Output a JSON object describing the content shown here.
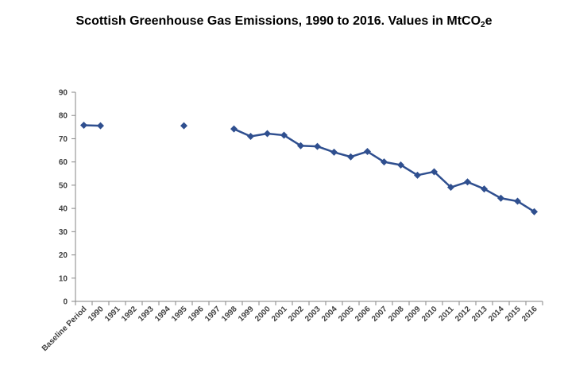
{
  "chart_data": {
    "type": "line",
    "title": {
      "main": "Scottish Greenhouse Gas Emissions, 1990 to 2016.  Values in MtCO",
      "subscript": "2",
      "suffix": "e"
    },
    "xlabel": "",
    "ylabel": "",
    "ylim": [
      0,
      90
    ],
    "yticks": [
      0,
      10,
      20,
      30,
      40,
      50,
      60,
      70,
      80,
      90
    ],
    "grid": false,
    "legend": "none",
    "categories": [
      "Baseline Period",
      "1990",
      "1991",
      "1992",
      "1993",
      "1994",
      "1995",
      "1996",
      "1997",
      "1998",
      "1999",
      "2000",
      "2001",
      "2002",
      "2003",
      "2004",
      "2005",
      "2006",
      "2007",
      "2008",
      "2009",
      "2010",
      "2011",
      "2012",
      "2013",
      "2014",
      "2015",
      "2016"
    ],
    "series": [
      {
        "color": "#2F4F8F",
        "marker": "diamond",
        "values": [
          75.8,
          75.6,
          null,
          null,
          null,
          null,
          75.6,
          null,
          null,
          74.2,
          71.0,
          72.2,
          71.5,
          67.0,
          66.7,
          64.2,
          62.2,
          64.5,
          60.0,
          58.7,
          54.3,
          55.8,
          49.1,
          51.4,
          48.4,
          44.4,
          43.1,
          38.6
        ]
      }
    ]
  }
}
